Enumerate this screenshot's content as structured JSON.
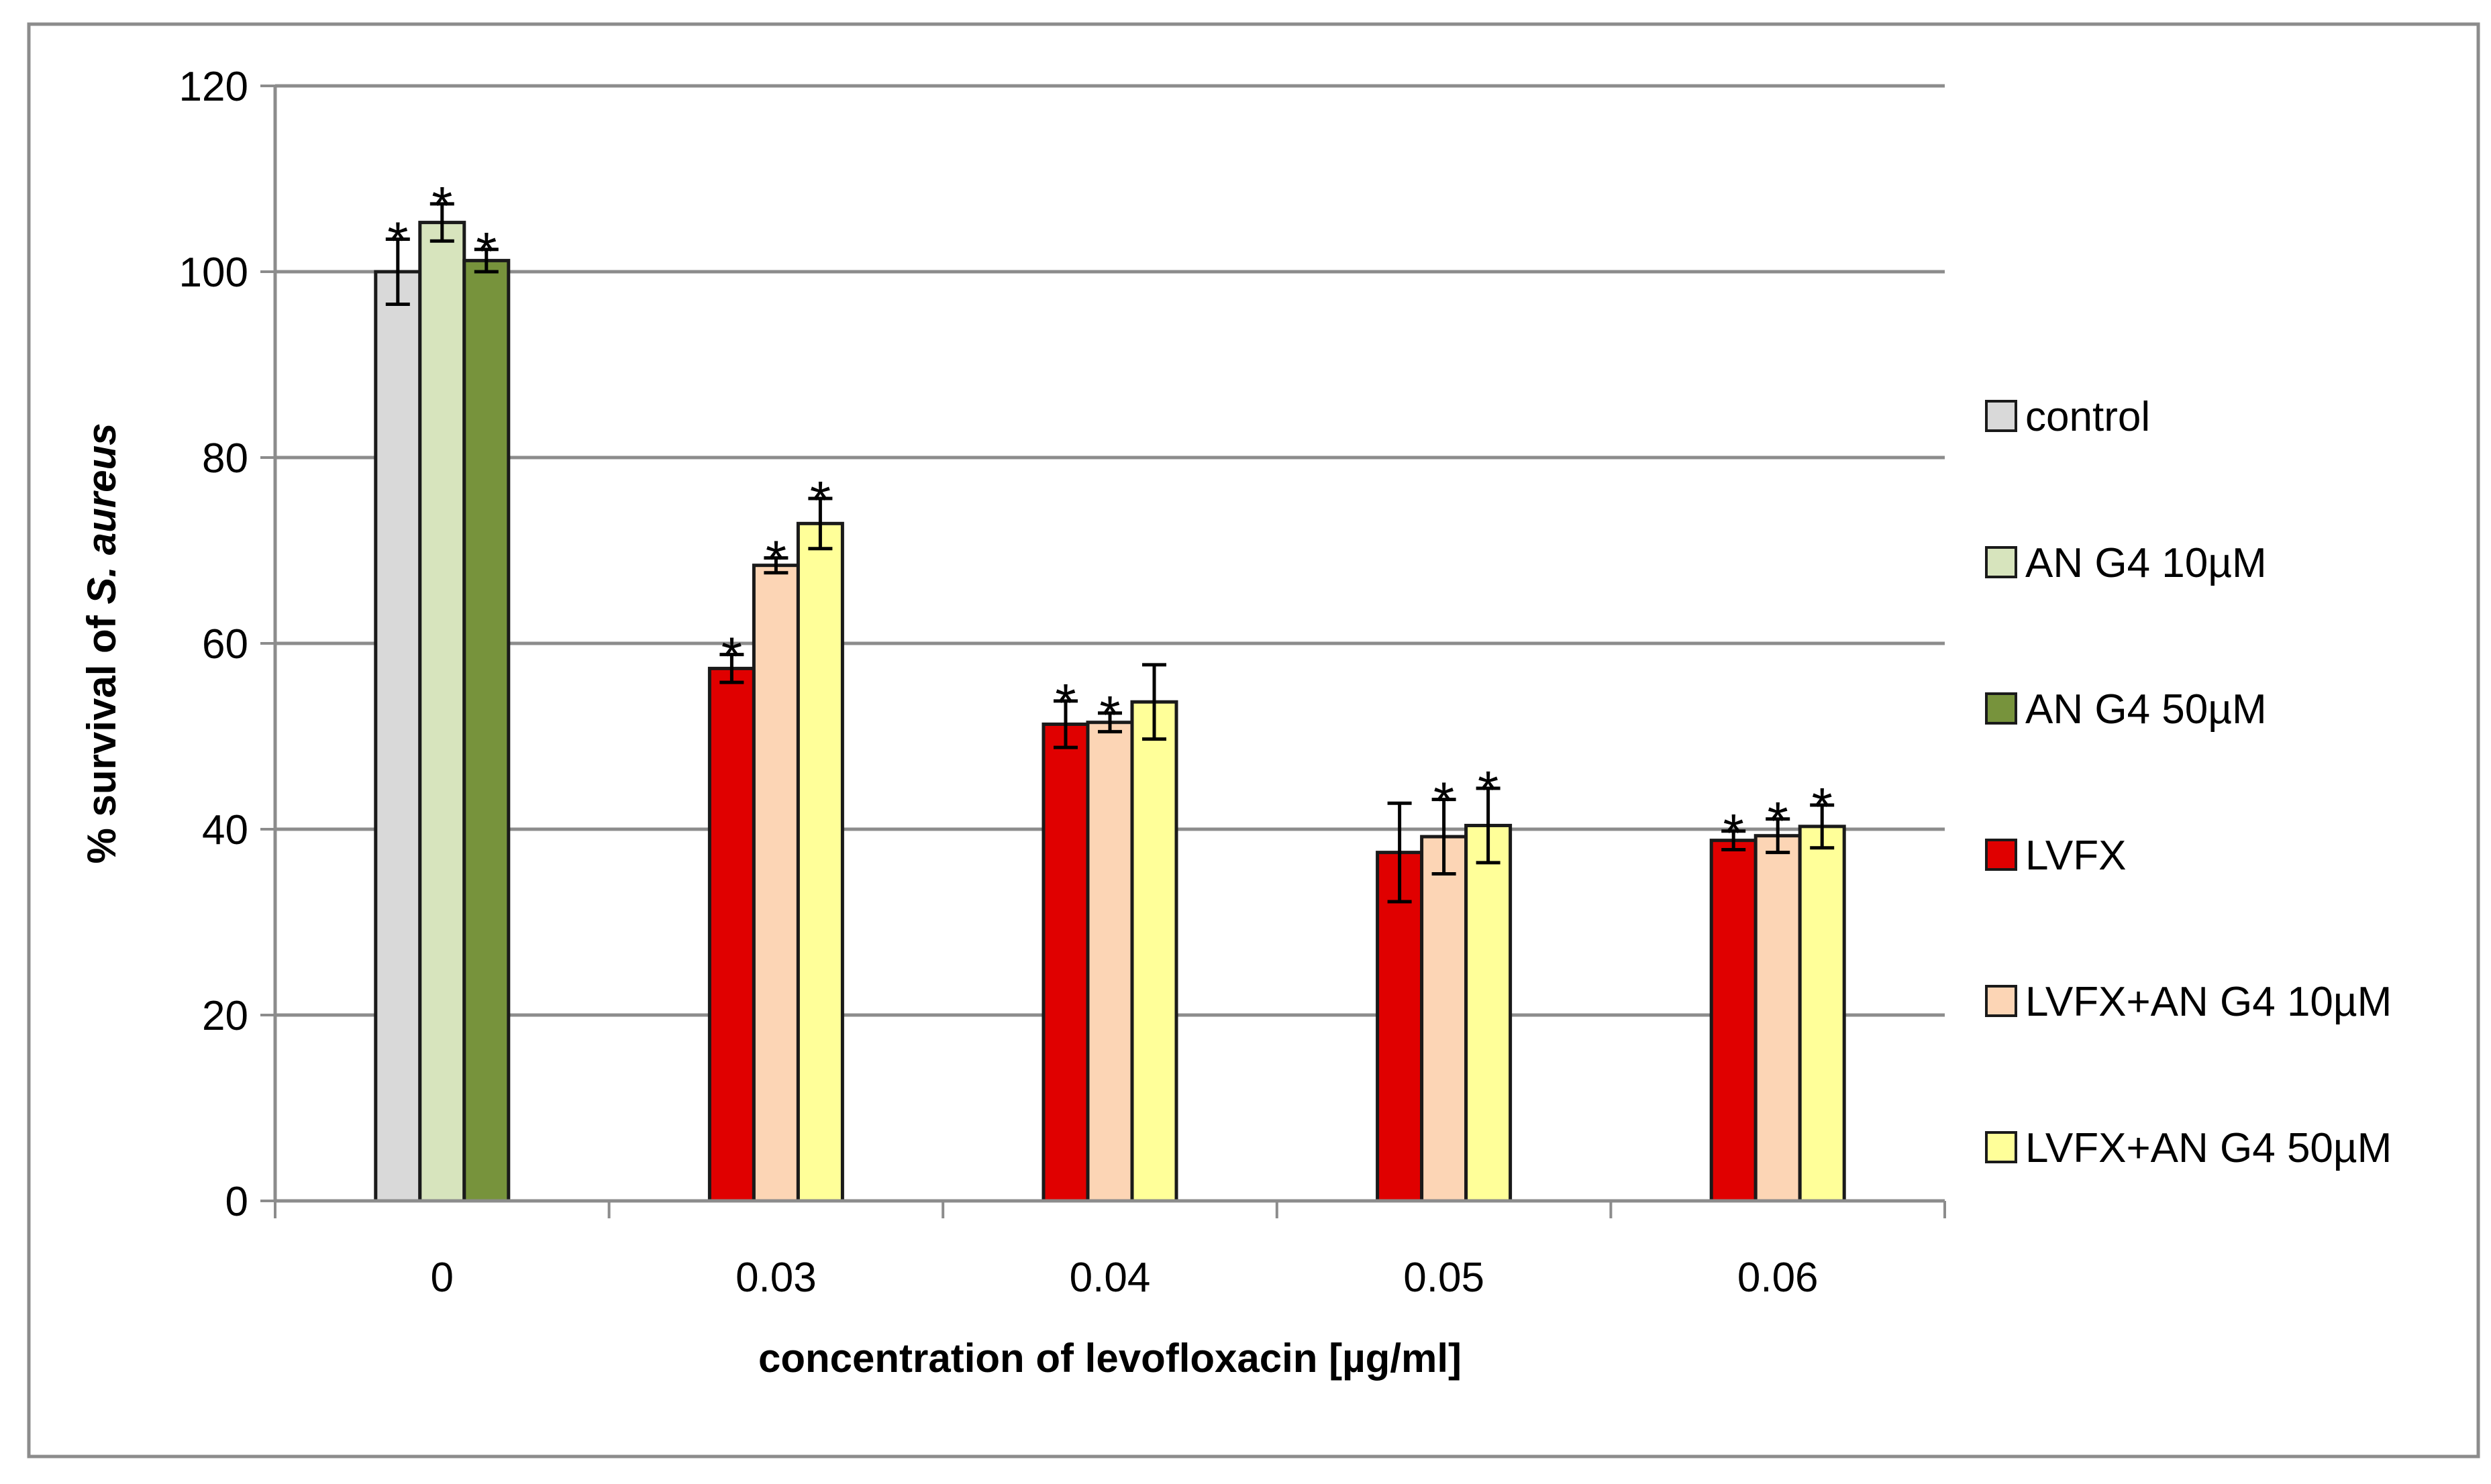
{
  "chart_data": {
    "type": "bar",
    "title": "",
    "xlabel": "concentration of levofloxacin [µg/ml]",
    "ylabel": {
      "prefix": "% survival of ",
      "italic": "S. aureus"
    },
    "ylim": [
      0,
      120
    ],
    "y_ticks": [
      0,
      20,
      40,
      60,
      80,
      100,
      120
    ],
    "grid": true,
    "legend_position": "right",
    "categories": [
      "0",
      "0.03",
      "0.04",
      "0.05",
      "0.06"
    ],
    "significance_symbol": "*",
    "series": [
      {
        "name": "control",
        "color": "#d9d9d9",
        "values": [
          100,
          null,
          null,
          null,
          null
        ],
        "errors": [
          3.5,
          null,
          null,
          null,
          null
        ],
        "significant": [
          true,
          false,
          false,
          false,
          false
        ]
      },
      {
        "name": "AN G4 10µM",
        "color": "#d7e4bd",
        "values": [
          105.3,
          null,
          null,
          null,
          null
        ],
        "errors": [
          2.0,
          null,
          null,
          null,
          null
        ],
        "significant": [
          true,
          false,
          false,
          false,
          false
        ]
      },
      {
        "name": "AN G4 50µM",
        "color": "#77933c",
        "values": [
          101.2,
          null,
          null,
          null,
          null
        ],
        "errors": [
          1.2,
          null,
          null,
          null,
          null
        ],
        "significant": [
          true,
          false,
          false,
          false,
          false
        ]
      },
      {
        "name": "LVFX",
        "color": "#e00000",
        "values": [
          null,
          57.3,
          51.3,
          37.5,
          38.8
        ],
        "errors": [
          null,
          1.5,
          2.5,
          5.3,
          1.0
        ],
        "significant": [
          false,
          true,
          true,
          false,
          true
        ]
      },
      {
        "name": "LVFX+AN G4 10µM",
        "color": "#fcd5b5",
        "values": [
          null,
          68.4,
          51.5,
          39.2,
          39.3
        ],
        "errors": [
          null,
          0.8,
          1.0,
          4.0,
          1.8
        ],
        "significant": [
          false,
          true,
          true,
          true,
          true
        ]
      },
      {
        "name": "LVFX+AN G4  50µM",
        "color": "#ffff99",
        "values": [
          null,
          72.9,
          53.7,
          40.4,
          40.3
        ],
        "errors": [
          null,
          2.7,
          4.0,
          4.0,
          2.3
        ],
        "significant": [
          false,
          true,
          false,
          true,
          true
        ]
      }
    ]
  }
}
